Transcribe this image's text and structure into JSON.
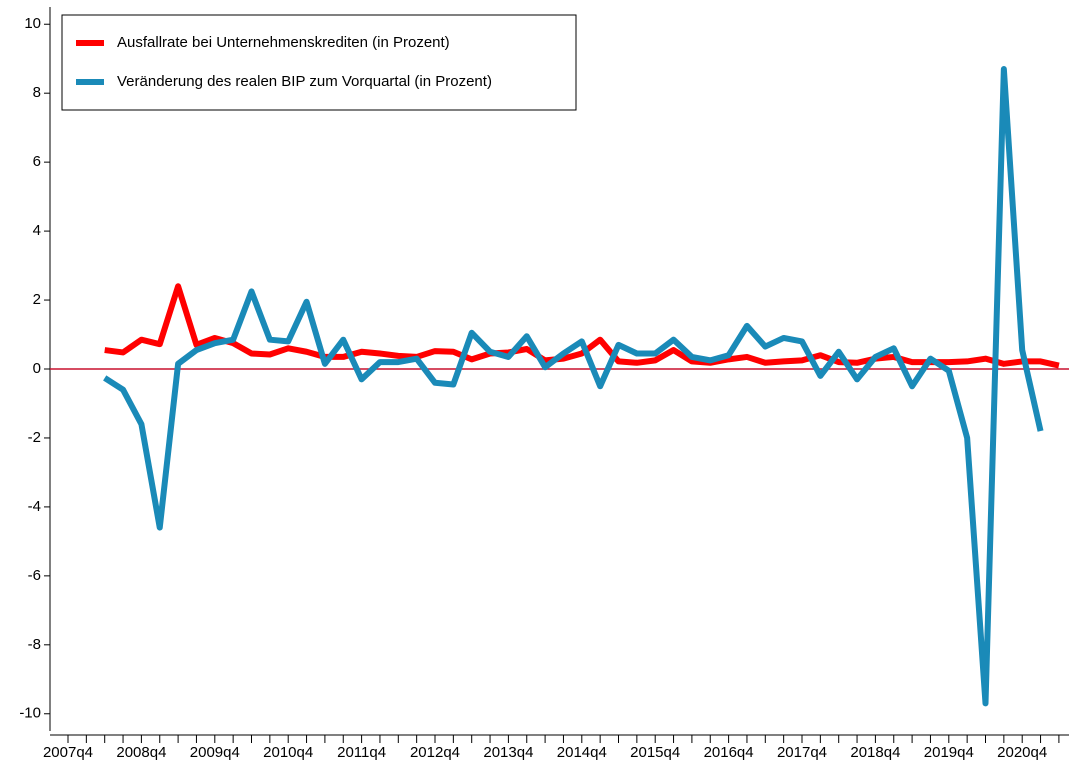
{
  "chart_data": {
    "type": "line",
    "categories": [
      "2007q4",
      null,
      null,
      null,
      "2008q4",
      null,
      null,
      null,
      "2009q4",
      null,
      null,
      null,
      "2010q4",
      null,
      null,
      null,
      "2011q4",
      null,
      null,
      null,
      "2012q4",
      null,
      null,
      null,
      "2013q4",
      null,
      null,
      null,
      "2014q4",
      null,
      null,
      null,
      "2015q4",
      null,
      null,
      null,
      "2016q4",
      null,
      null,
      null,
      "2017q4",
      null,
      null,
      null,
      "2018q4",
      null,
      null,
      null,
      "2019q4",
      null,
      null,
      null,
      "2020q4",
      null,
      null
    ],
    "series": [
      {
        "name": "Ausfallrate bei Unternehmenskrediten (in Prozent)",
        "color": "#ff0000",
        "values": [
          null,
          null,
          0.55,
          0.48,
          0.85,
          0.72,
          2.4,
          0.7,
          0.9,
          0.75,
          0.45,
          0.42,
          0.6,
          0.5,
          0.35,
          0.35,
          0.5,
          0.45,
          0.38,
          0.35,
          0.52,
          0.5,
          0.28,
          0.45,
          0.48,
          0.58,
          0.25,
          0.3,
          0.45,
          0.85,
          0.22,
          0.18,
          0.25,
          0.55,
          0.22,
          0.18,
          0.28,
          0.35,
          0.18,
          0.22,
          0.25,
          0.4,
          0.2,
          0.18,
          0.3,
          0.35,
          0.2,
          0.2,
          0.2,
          0.22,
          0.3,
          0.15,
          0.22,
          0.22,
          0.1
        ]
      },
      {
        "name": "Veränderung des realen BIP zum Vorquartal (in Prozent)",
        "color": "#1a8ab8",
        "values": [
          null,
          null,
          -0.26,
          -0.6,
          -1.6,
          -4.6,
          0.15,
          0.55,
          0.75,
          0.85,
          2.25,
          0.85,
          0.8,
          1.95,
          0.15,
          0.85,
          -0.3,
          0.2,
          0.2,
          0.3,
          -0.4,
          -0.45,
          1.05,
          0.5,
          0.35,
          0.95,
          0.05,
          0.45,
          0.8,
          -0.5,
          0.7,
          0.45,
          0.45,
          0.85,
          0.35,
          0.25,
          0.4,
          1.25,
          0.65,
          0.9,
          0.8,
          -0.2,
          0.5,
          -0.3,
          0.35,
          0.6,
          -0.5,
          0.3,
          -0.05,
          -2.0,
          -9.7,
          8.7,
          0.55,
          -1.8,
          null
        ]
      }
    ],
    "ylim": [
      -10.5,
      10.5
    ],
    "yticks": [
      -10,
      -8,
      -6,
      -4,
      -2,
      0,
      2,
      4,
      6,
      8,
      10
    ],
    "reference_line": 0,
    "reference_color": "#c8102e",
    "legend": "upper left"
  }
}
